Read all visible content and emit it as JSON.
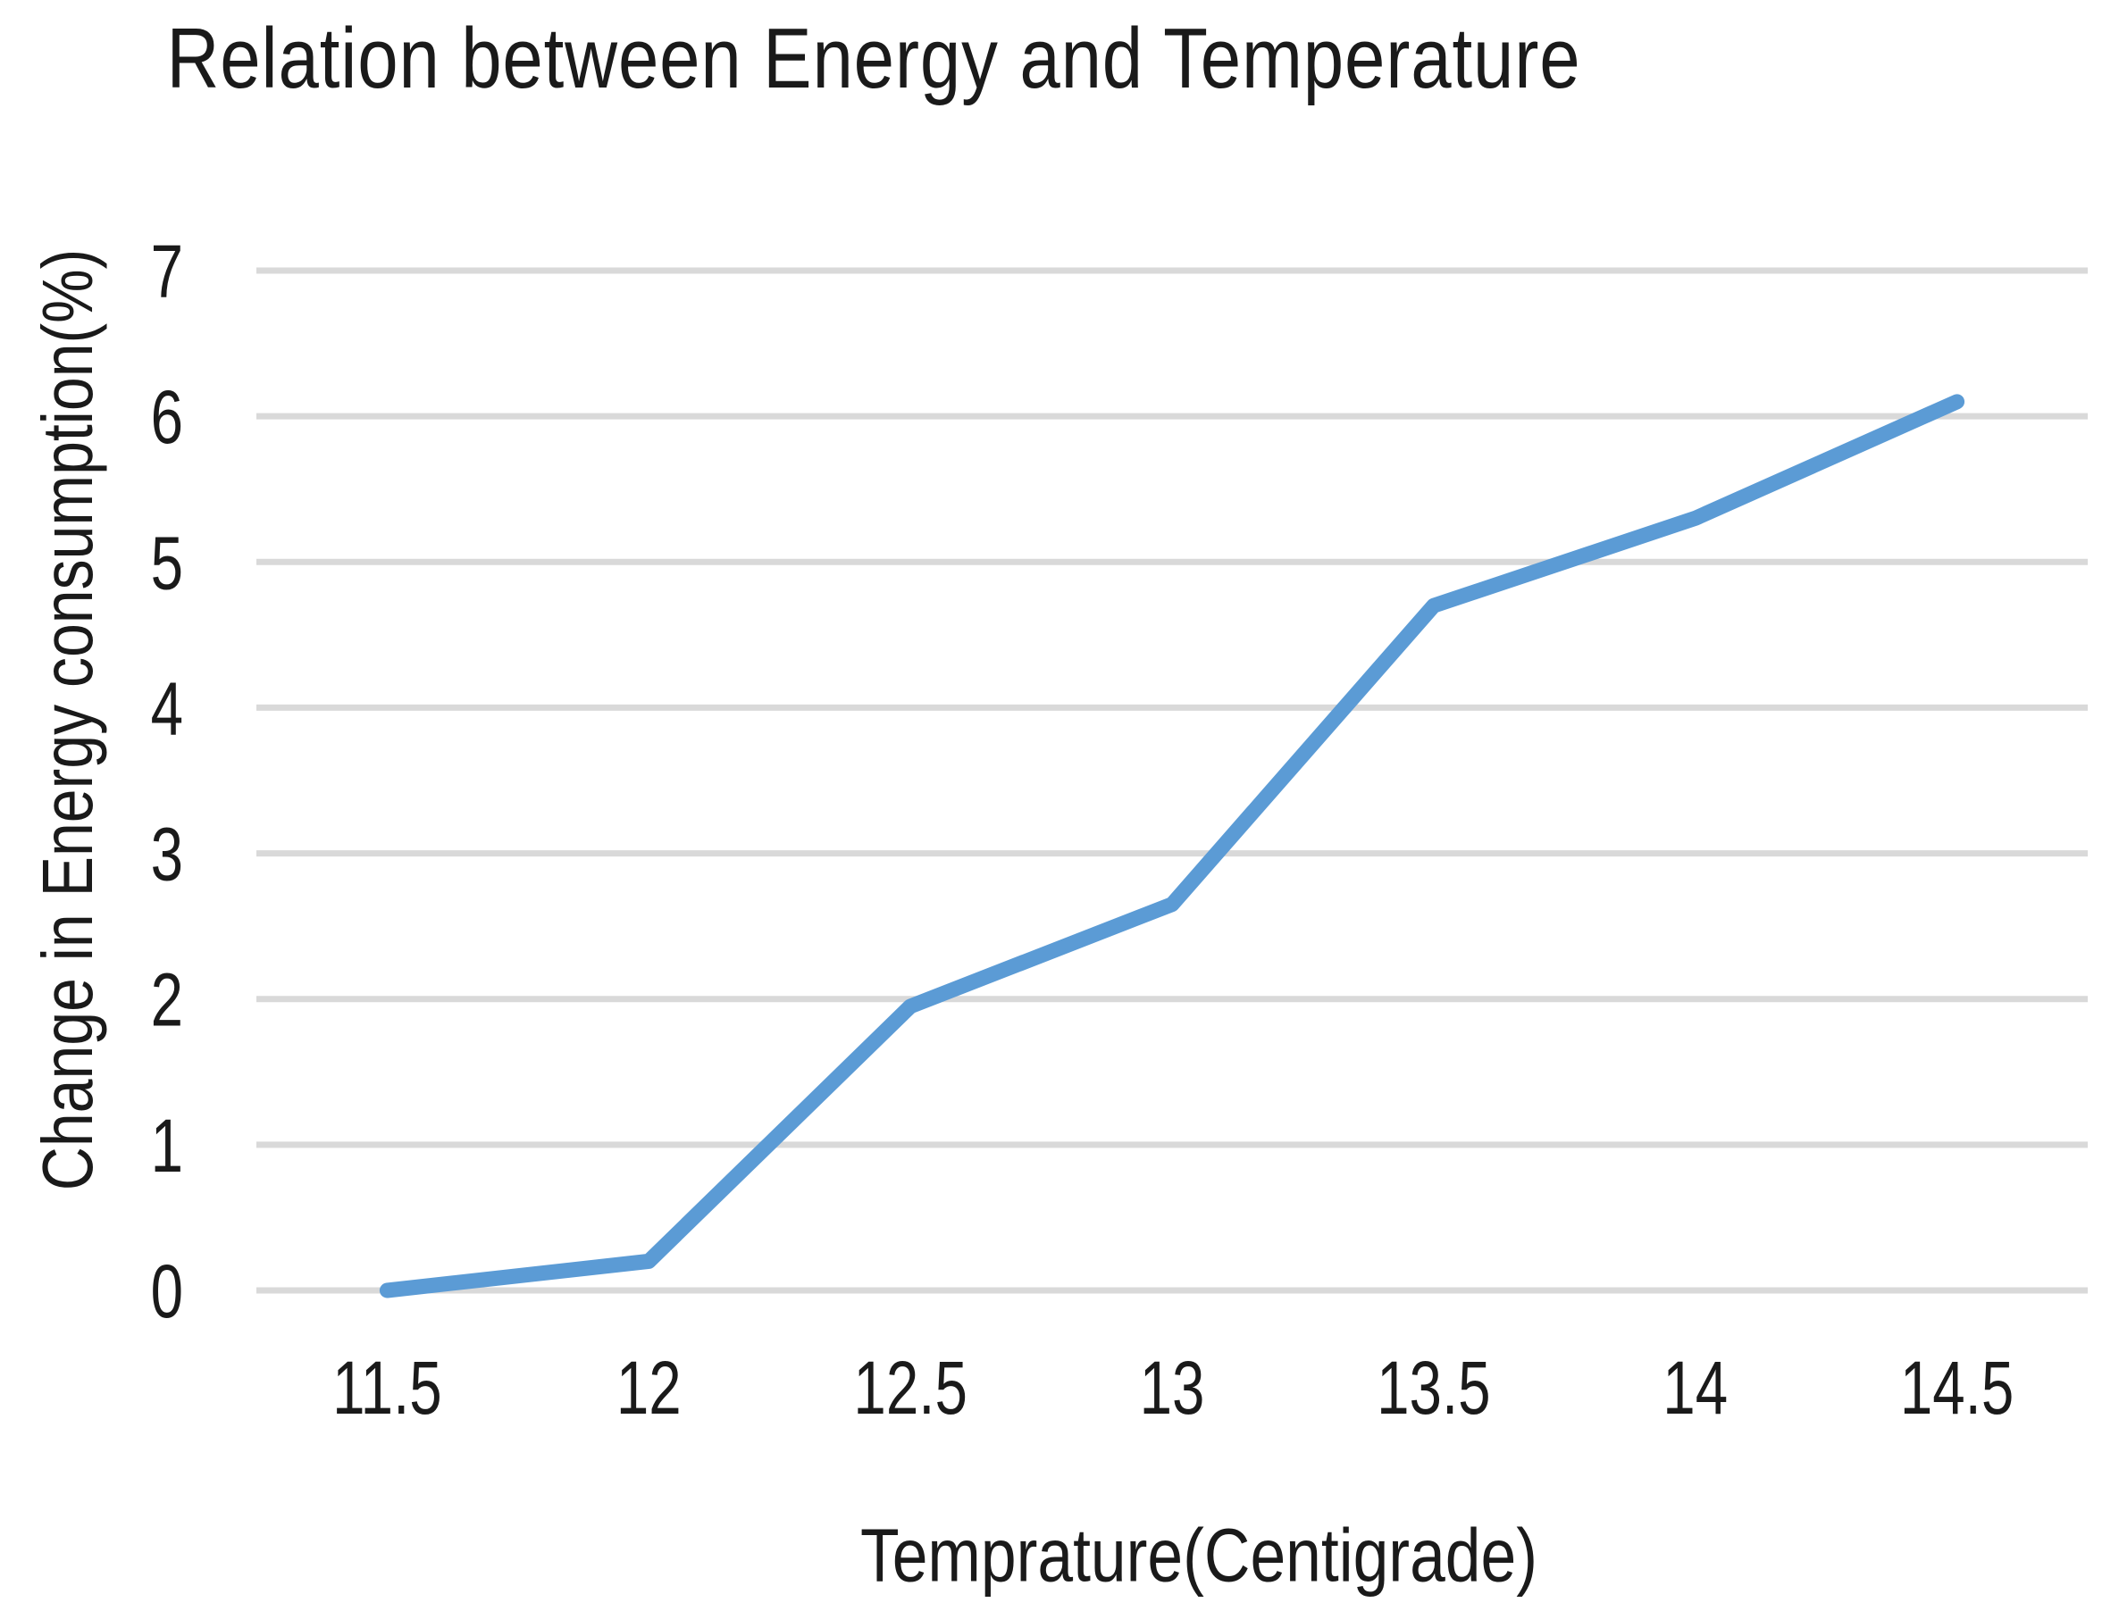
{
  "chart_data": {
    "type": "line",
    "title": "Relation between Energy and Temperature",
    "xlabel": "Temprature(Centigrade)",
    "ylabel": "Change in Energy consumption(%)",
    "categories": [
      "11.5",
      "12",
      "12.5",
      "13",
      "13.5",
      "14",
      "14.5"
    ],
    "values": [
      0,
      0.2,
      1.95,
      2.65,
      4.7,
      5.3,
      6.1
    ],
    "ylim": [
      0,
      7
    ],
    "y_ticks": [
      0,
      1,
      2,
      3,
      4,
      5,
      6,
      7
    ],
    "grid": "horizontal",
    "legend": "none",
    "colors": {
      "line": "#5B9BD5",
      "gridline": "#D9D9D9",
      "text": "#1A1A1A",
      "background": "#FFFFFF"
    }
  }
}
